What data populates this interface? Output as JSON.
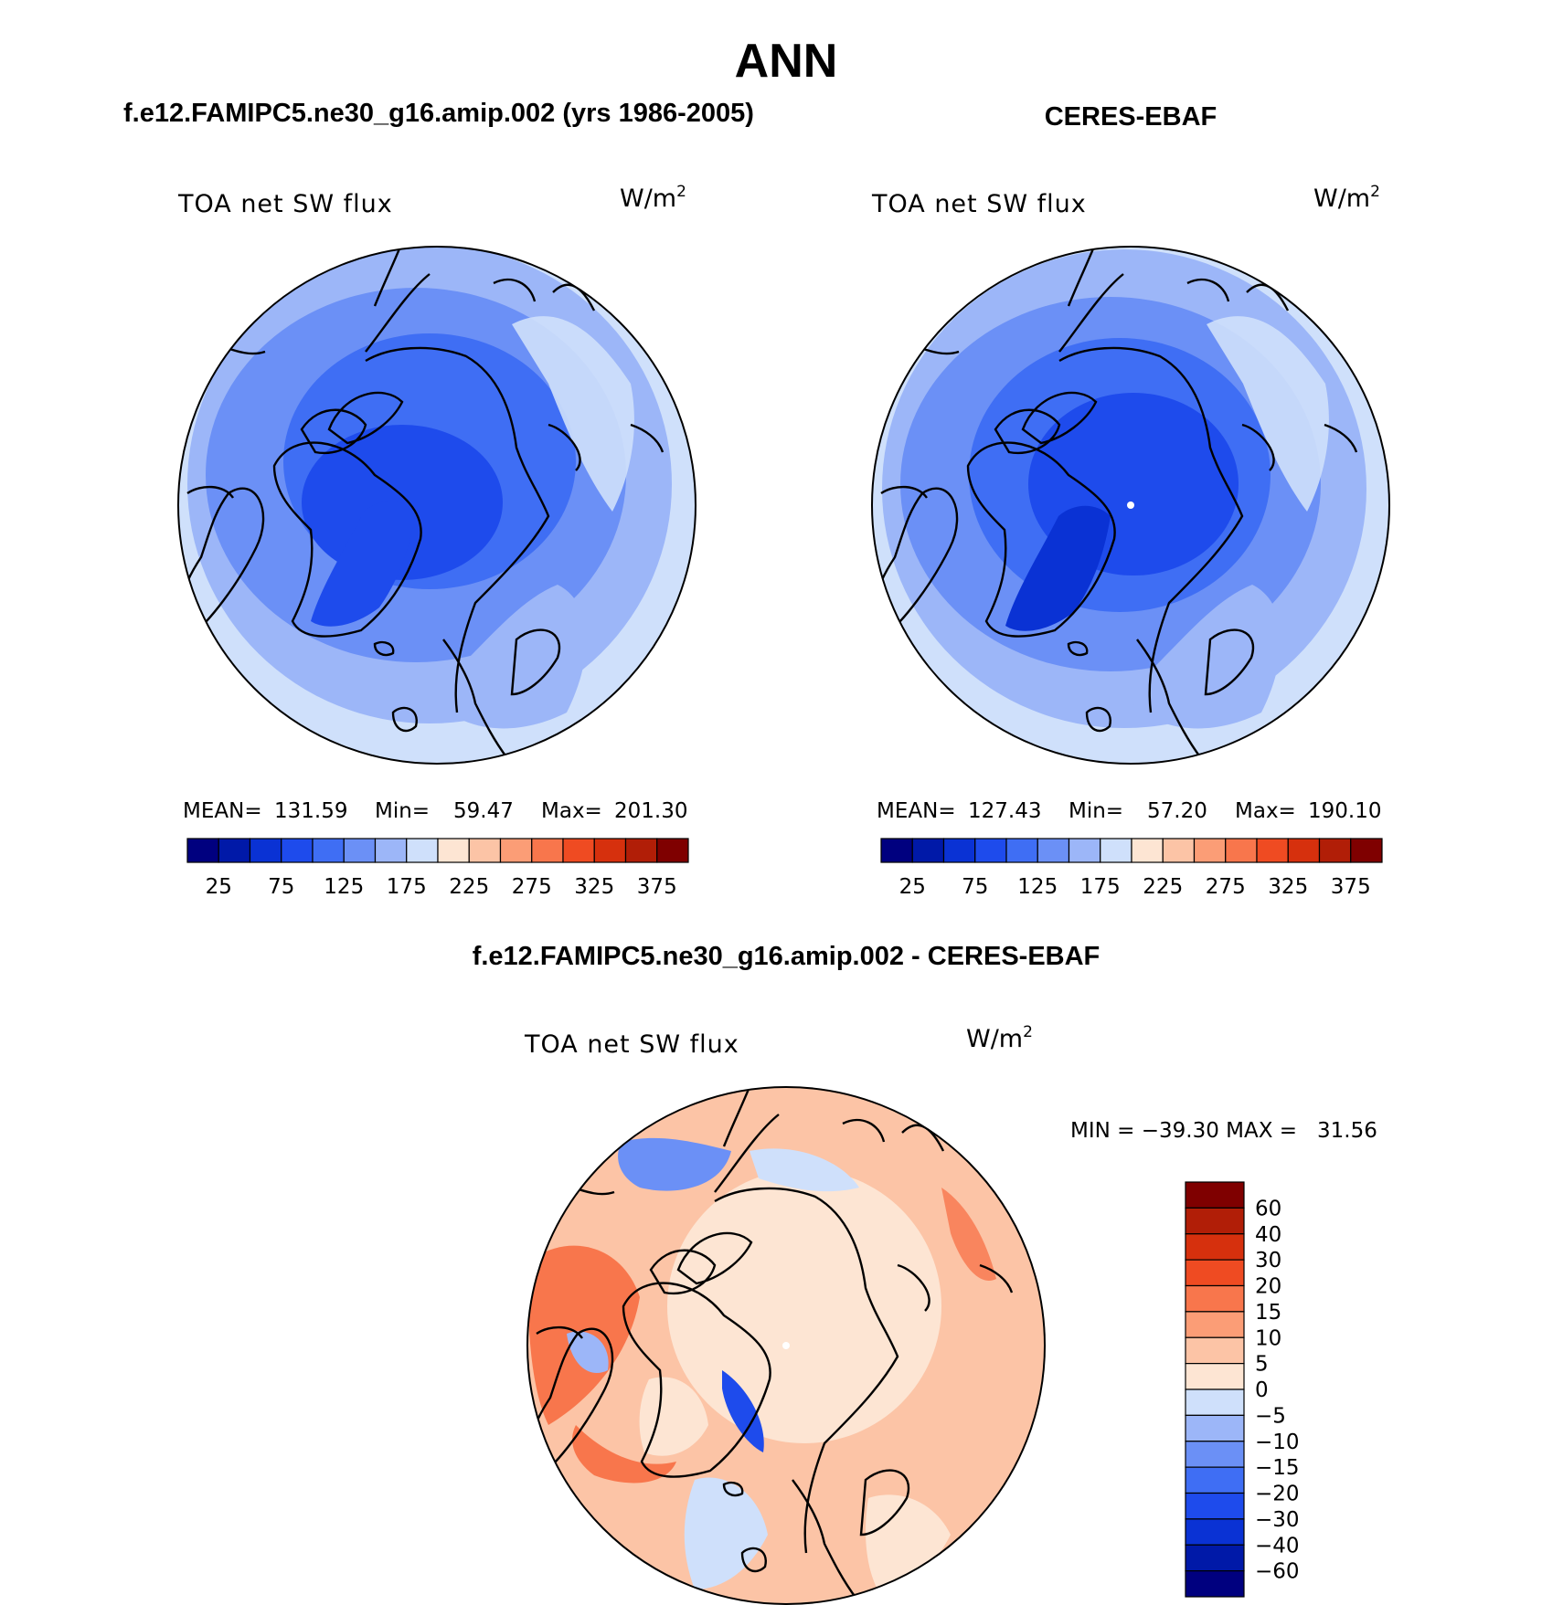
{
  "title": "ANN",
  "panels": [
    {
      "header": "f.e12.FAMIPC5.ne30_g16.amip.002 (yrs 1986-2005)",
      "variable": "TOA net SW flux",
      "units": "W/m",
      "units_exp": "2",
      "stats": {
        "mean_label": "MEAN=",
        "mean": "131.59",
        "min_label": "Min=",
        "min": "59.47",
        "max_label": "Max=",
        "max": "201.30"
      }
    },
    {
      "header": "CERES-EBAF",
      "variable": "TOA net SW flux",
      "units": "W/m",
      "units_exp": "2",
      "stats": {
        "mean_label": "MEAN=",
        "mean": "127.43",
        "min_label": "Min=",
        "min": "57.20",
        "max_label": "Max=",
        "max": "190.10"
      }
    }
  ],
  "diff_panel": {
    "header": "f.e12.FAMIPC5.ne30_g16.amip.002 - CERES-EBAF",
    "variable": "TOA net SW flux",
    "units": "W/m",
    "units_exp": "2",
    "minmax": "MIN = −39.30 MAX =   31.56"
  },
  "colorbar_main": {
    "tick_labels": [
      "25",
      "75",
      "125",
      "175",
      "225",
      "275",
      "325",
      "375"
    ],
    "colors": [
      "#00007f",
      "#0019a8",
      "#0a32d4",
      "#1e4bec",
      "#3f6ef4",
      "#6b90f6",
      "#9cb6f8",
      "#cfe0fb",
      "#fde5d3",
      "#fcc4a6",
      "#fb9d76",
      "#f8764c",
      "#ef4b22",
      "#d6300d",
      "#b11e07",
      "#7f0000"
    ]
  },
  "colorbar_diff": {
    "tick_labels": [
      "60",
      "40",
      "30",
      "20",
      "15",
      "10",
      "5",
      "0",
      "−5",
      "−10",
      "−15",
      "−20",
      "−30",
      "−40",
      "−60"
    ],
    "colors": [
      "#7f0000",
      "#b11e07",
      "#d6300d",
      "#ef4b22",
      "#f8764c",
      "#fb9d76",
      "#fcc4a6",
      "#fde5d3",
      "#cfe0fb",
      "#9cb6f8",
      "#6b90f6",
      "#3f6ef4",
      "#1e4bec",
      "#0a32d4",
      "#0019a8",
      "#00007f"
    ]
  }
}
